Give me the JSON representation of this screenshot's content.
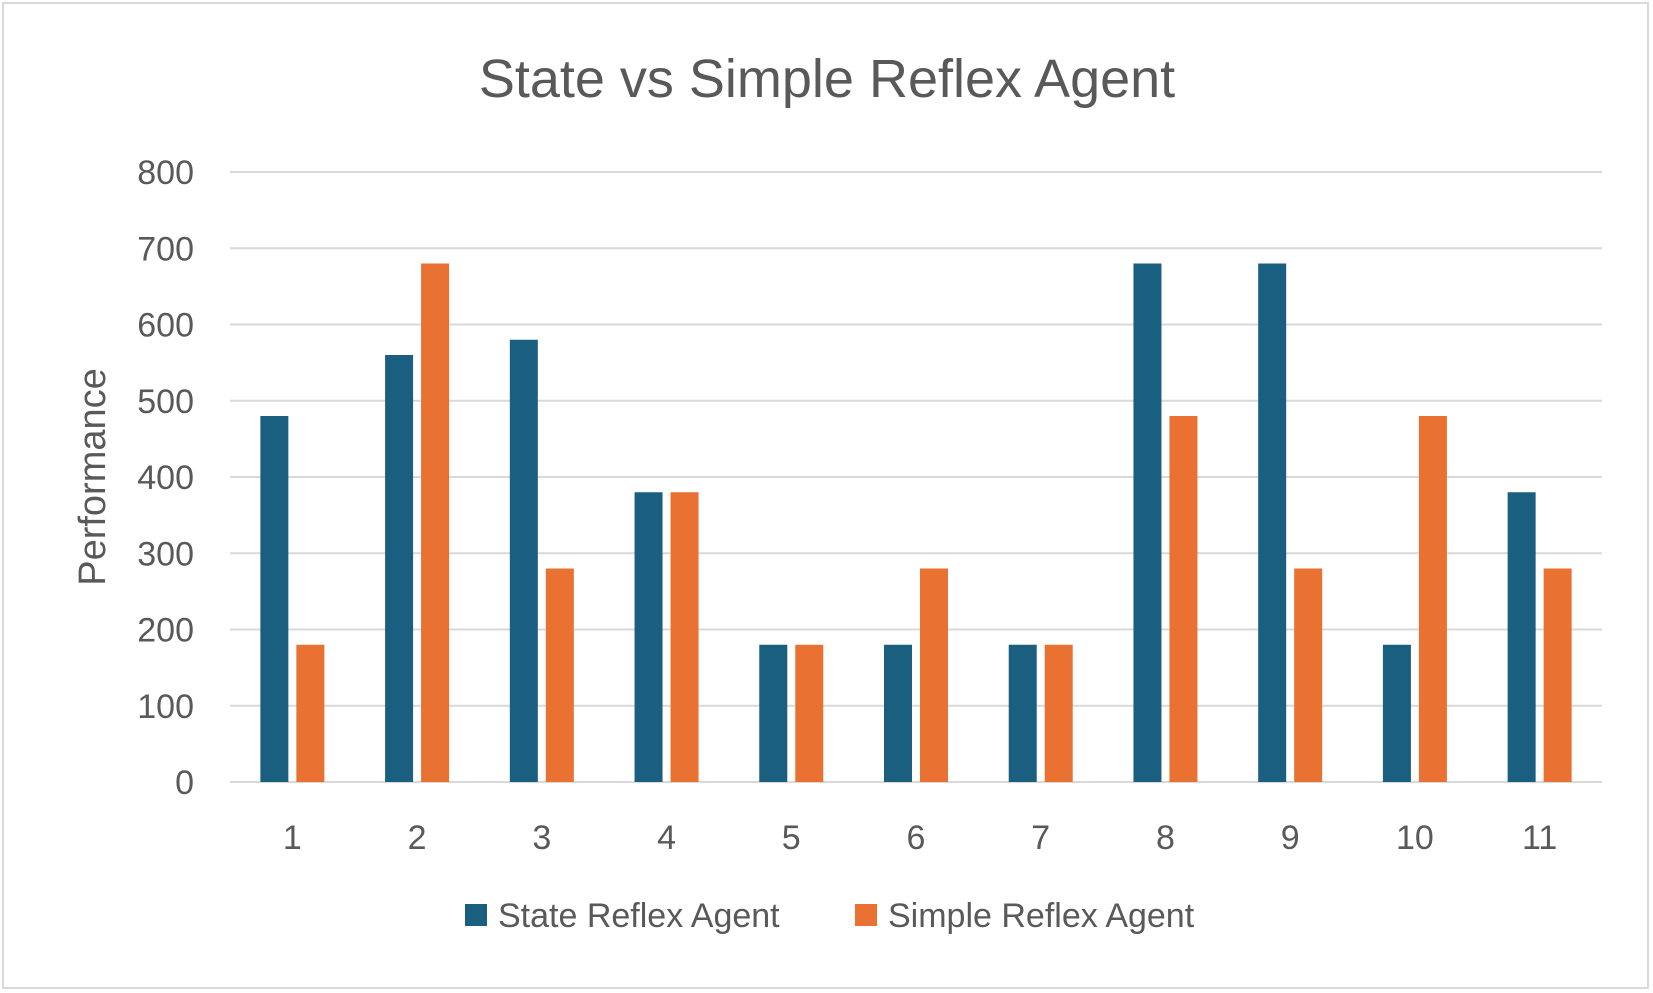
{
  "chart_data": {
    "type": "bar",
    "title": "State vs Simple Reflex Agent",
    "xlabel": "",
    "ylabel": "Performance",
    "categories": [
      "1",
      "2",
      "3",
      "4",
      "5",
      "6",
      "7",
      "8",
      "9",
      "10",
      "11"
    ],
    "series": [
      {
        "name": "State Reflex Agent",
        "color": "#1a5e80",
        "values": [
          480,
          560,
          580,
          380,
          180,
          180,
          180,
          680,
          680,
          180,
          380
        ]
      },
      {
        "name": "Simple Reflex Agent",
        "color": "#e97132",
        "values": [
          180,
          680,
          280,
          380,
          180,
          280,
          180,
          480,
          280,
          480,
          280
        ]
      }
    ],
    "ylim": [
      0,
      800
    ],
    "yticks": [
      0,
      100,
      200,
      300,
      400,
      500,
      600,
      700,
      800
    ],
    "grid": true,
    "legend_position": "bottom"
  }
}
